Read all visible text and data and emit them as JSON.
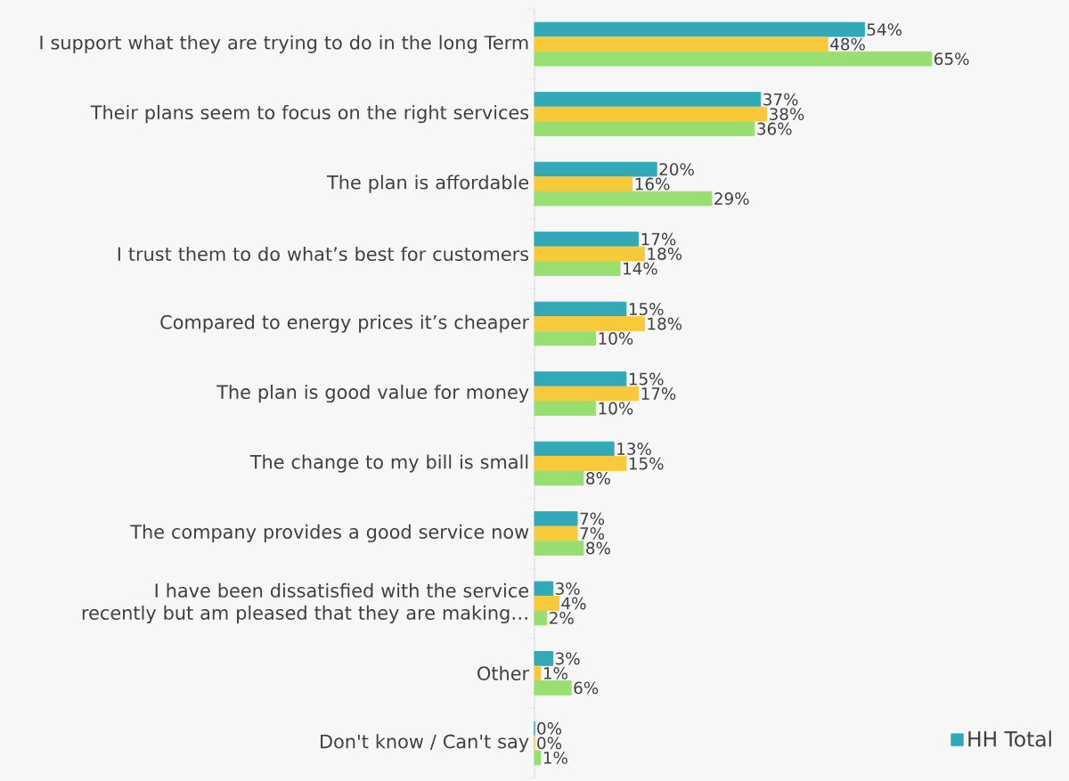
{
  "chart_data": {
    "type": "bar",
    "orientation": "horizontal",
    "categories": [
      "I support what they are trying to do in the long Term",
      "Their plans seem to focus on the right services",
      "The plan is affordable",
      "I trust them to do what’s best for customers",
      "Compared to energy prices it’s cheaper",
      "The plan is good value for money",
      "The change to my bill is small",
      "The company provides a good service now",
      "I have been dissatisfied with the service recently but am pleased that they are making…",
      "Other",
      "Don't know / Can't say"
    ],
    "xlim": [
      0,
      87
    ],
    "series": [
      {
        "name": "HH Total",
        "color": "#31a9b8",
        "values": [
          54,
          37,
          20,
          17,
          15,
          15,
          13,
          7,
          3,
          3,
          0
        ],
        "value_labels": [
          "54%",
          "37%",
          "20%",
          "17%",
          "15%",
          "15%",
          "13%",
          "7%",
          "3%",
          "3%",
          "0%"
        ]
      },
      {
        "color": "#f9c93c",
        "values": [
          48,
          38,
          16,
          18,
          18,
          17,
          15,
          7,
          4,
          1,
          0
        ],
        "value_labels": [
          "48%",
          "38%",
          "16%",
          "18%",
          "18%",
          "17%",
          "15%",
          "7%",
          "4%",
          "1%",
          "0%"
        ]
      },
      {
        "color": "#98de70",
        "values": [
          65,
          36,
          29,
          14,
          10,
          10,
          8,
          8,
          2,
          6,
          1
        ],
        "value_labels": [
          "65%",
          "36%",
          "29%",
          "14%",
          "10%",
          "10%",
          "8%",
          "8%",
          "2%",
          "6%",
          "1%"
        ]
      }
    ],
    "legend": "bottom right"
  }
}
